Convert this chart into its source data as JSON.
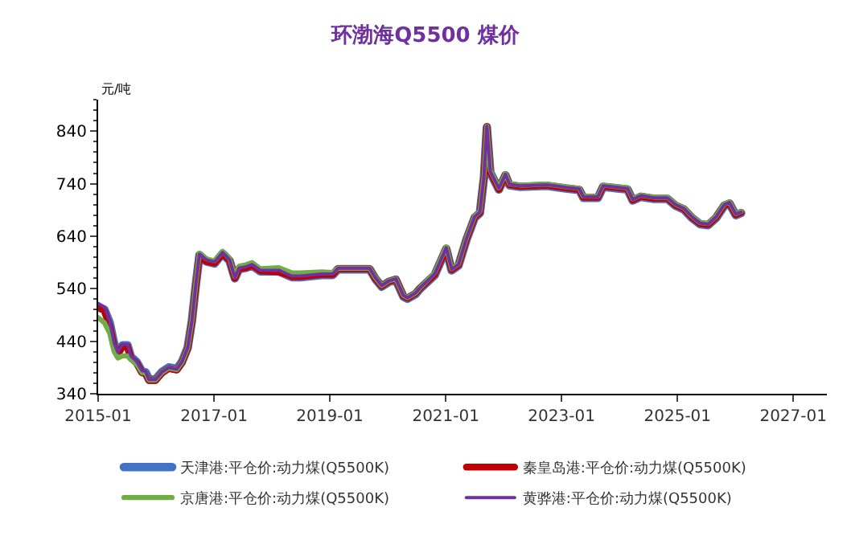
{
  "chart_data": {
    "type": "line",
    "title": "环渤海Q5500 煤价",
    "ylabel": "元/吨",
    "x": [
      "2015-01-01",
      "2015-02-10",
      "2015-03-15",
      "2015-04-12",
      "2015-05-05",
      "2015-06-03",
      "2015-07-05",
      "2015-07-27",
      "2015-09-02",
      "2015-10-05",
      "2015-10-27",
      "2015-11-18",
      "2015-12-28",
      "2016-02-06",
      "2016-03-21",
      "2016-05-11",
      "2016-06-13",
      "2016-07-19",
      "2016-08-14",
      "2016-09-09",
      "2016-10-01",
      "2016-11-14",
      "2017-01-04",
      "2017-02-24",
      "2017-04-09",
      "2017-05-12",
      "2017-06-07",
      "2017-07-24",
      "2017-08-29",
      "2017-10-20",
      "2018-02-14",
      "2018-04-06",
      "2018-05-08",
      "2018-06-28",
      "2018-11-10",
      "2019-01-19",
      "2019-02-21",
      "2019-09-09",
      "2019-10-15",
      "2019-11-24",
      "2020-01-08",
      "2020-02-21",
      "2020-04-09",
      "2020-05-05",
      "2020-06-25",
      "2020-07-20",
      "2020-10-23",
      "2021-01-04",
      "2021-02-07",
      "2021-03-22",
      "2021-05-12",
      "2021-07-02",
      "2021-08-04",
      "2021-08-30",
      "2021-09-17",
      "2021-10-09",
      "2021-12-02",
      "2022-01-12",
      "2022-02-07",
      "2022-04-16",
      "2022-10-01",
      "2023-01-27",
      "2023-04-23",
      "2023-05-19",
      "2023-08-18",
      "2023-09-20",
      "2024-02-21",
      "2024-03-25",
      "2024-05-15",
      "2024-08-07",
      "2024-10-30",
      "2024-12-20",
      "2025-02-10",
      "2025-04-02",
      "2025-05-23",
      "2025-07-13",
      "2025-09-02",
      "2025-10-23",
      "2025-11-25",
      "2026-01-04",
      "2026-02-06"
    ],
    "series": [
      {
        "name": "天津港:平仓价:动力煤(Q5500K)",
        "color": "#4472c4",
        "values": [
          505,
          500,
          475,
          435,
          417,
          432,
          432,
          410,
          400,
          382,
          381,
          367,
          367,
          381,
          390,
          387,
          401,
          428,
          478,
          550,
          604,
          592,
          588,
          607,
          593,
          560,
          577,
          580,
          584,
          573,
          573,
          566,
          562,
          562,
          566,
          566,
          577,
          577,
          559,
          544,
          553,
          557,
          525,
          521,
          530,
          539,
          566,
          616,
          575,
          584,
          634,
          675,
          684,
          752,
          847,
          761,
          729,
          756,
          737,
          734,
          736,
          731,
          728,
          713,
          713,
          734,
          729,
          708,
          715,
          711,
          711,
          698,
          691,
          675,
          663,
          661,
          675,
          698,
          702,
          680,
          684
        ]
      },
      {
        "name": "秦皇岛港:平仓价:动力煤(Q5500K)",
        "color": "#c00000",
        "values": [
          505,
          498,
          470,
          430,
          415,
          430,
          430,
          408,
          398,
          380,
          378,
          365,
          365,
          379,
          388,
          385,
          399,
          426,
          476,
          548,
          604,
          592,
          589,
          607,
          594,
          560,
          578,
          580,
          585,
          574,
          572,
          567,
          563,
          563,
          567,
          567,
          578,
          578,
          559,
          545,
          554,
          558,
          526,
          522,
          531,
          540,
          567,
          617,
          576,
          585,
          635,
          676,
          685,
          753,
          849,
          762,
          729,
          757,
          738,
          735,
          737,
          732,
          729,
          714,
          714,
          735,
          730,
          709,
          716,
          712,
          712,
          699,
          692,
          676,
          664,
          662,
          676,
          699,
          703,
          681,
          685
        ]
      },
      {
        "name": "京唐港:平仓价:动力煤(Q5500K)",
        "color": "#70ad47",
        "values": [
          485,
          475,
          455,
          420,
          408,
          412,
          412,
          405,
          396,
          380,
          380,
          366,
          366,
          380,
          389,
          386,
          400,
          427,
          478,
          552,
          608,
          597,
          593,
          611,
          597,
          563,
          583,
          586,
          590,
          578,
          580,
          574,
          570,
          570,
          572,
          571,
          579,
          579,
          561,
          546,
          555,
          559,
          527,
          523,
          532,
          541,
          570,
          620,
          578,
          587,
          637,
          678,
          687,
          755,
          849,
          765,
          732,
          759,
          740,
          737,
          739,
          734,
          731,
          716,
          716,
          737,
          732,
          711,
          718,
          714,
          714,
          701,
          694,
          678,
          666,
          664,
          678,
          701,
          705,
          683,
          687
        ]
      },
      {
        "name": "黄骅港:平仓价:动力煤(Q5500K)",
        "color": "#7030a0",
        "values": [
          512,
          505,
          478,
          437,
          419,
          434,
          434,
          412,
          401,
          384,
          383,
          367,
          367,
          381,
          390,
          387,
          401,
          428,
          478,
          550,
          606,
          595,
          591,
          609,
          595,
          561,
          579,
          582,
          586,
          575,
          575,
          568,
          564,
          564,
          568,
          568,
          579,
          579,
          561,
          546,
          555,
          559,
          527,
          523,
          532,
          541,
          568,
          618,
          577,
          586,
          636,
          677,
          686,
          754,
          849,
          763,
          731,
          758,
          739,
          736,
          738,
          733,
          730,
          715,
          715,
          736,
          731,
          710,
          717,
          713,
          713,
          700,
          693,
          677,
          665,
          663,
          677,
          700,
          704,
          682,
          686
        ]
      }
    ],
    "xlim": [
      "2015-01-01",
      "2027-08-01"
    ],
    "xticks": [
      {
        "value": "2015-01-01",
        "label": "2015-01"
      },
      {
        "value": "2017-01-01",
        "label": "2017-01"
      },
      {
        "value": "2019-01-01",
        "label": "2019-01"
      },
      {
        "value": "2021-01-01",
        "label": "2021-01"
      },
      {
        "value": "2023-01-01",
        "label": "2023-01"
      },
      {
        "value": "2025-01-01",
        "label": "2025-01"
      },
      {
        "value": "2027-01-01",
        "label": "2027-01"
      }
    ],
    "ylim": [
      340,
      900
    ],
    "yticks": [
      340,
      440,
      540,
      640,
      740,
      840
    ],
    "legend": "bottom",
    "marker": "none",
    "line_style": "solid"
  }
}
